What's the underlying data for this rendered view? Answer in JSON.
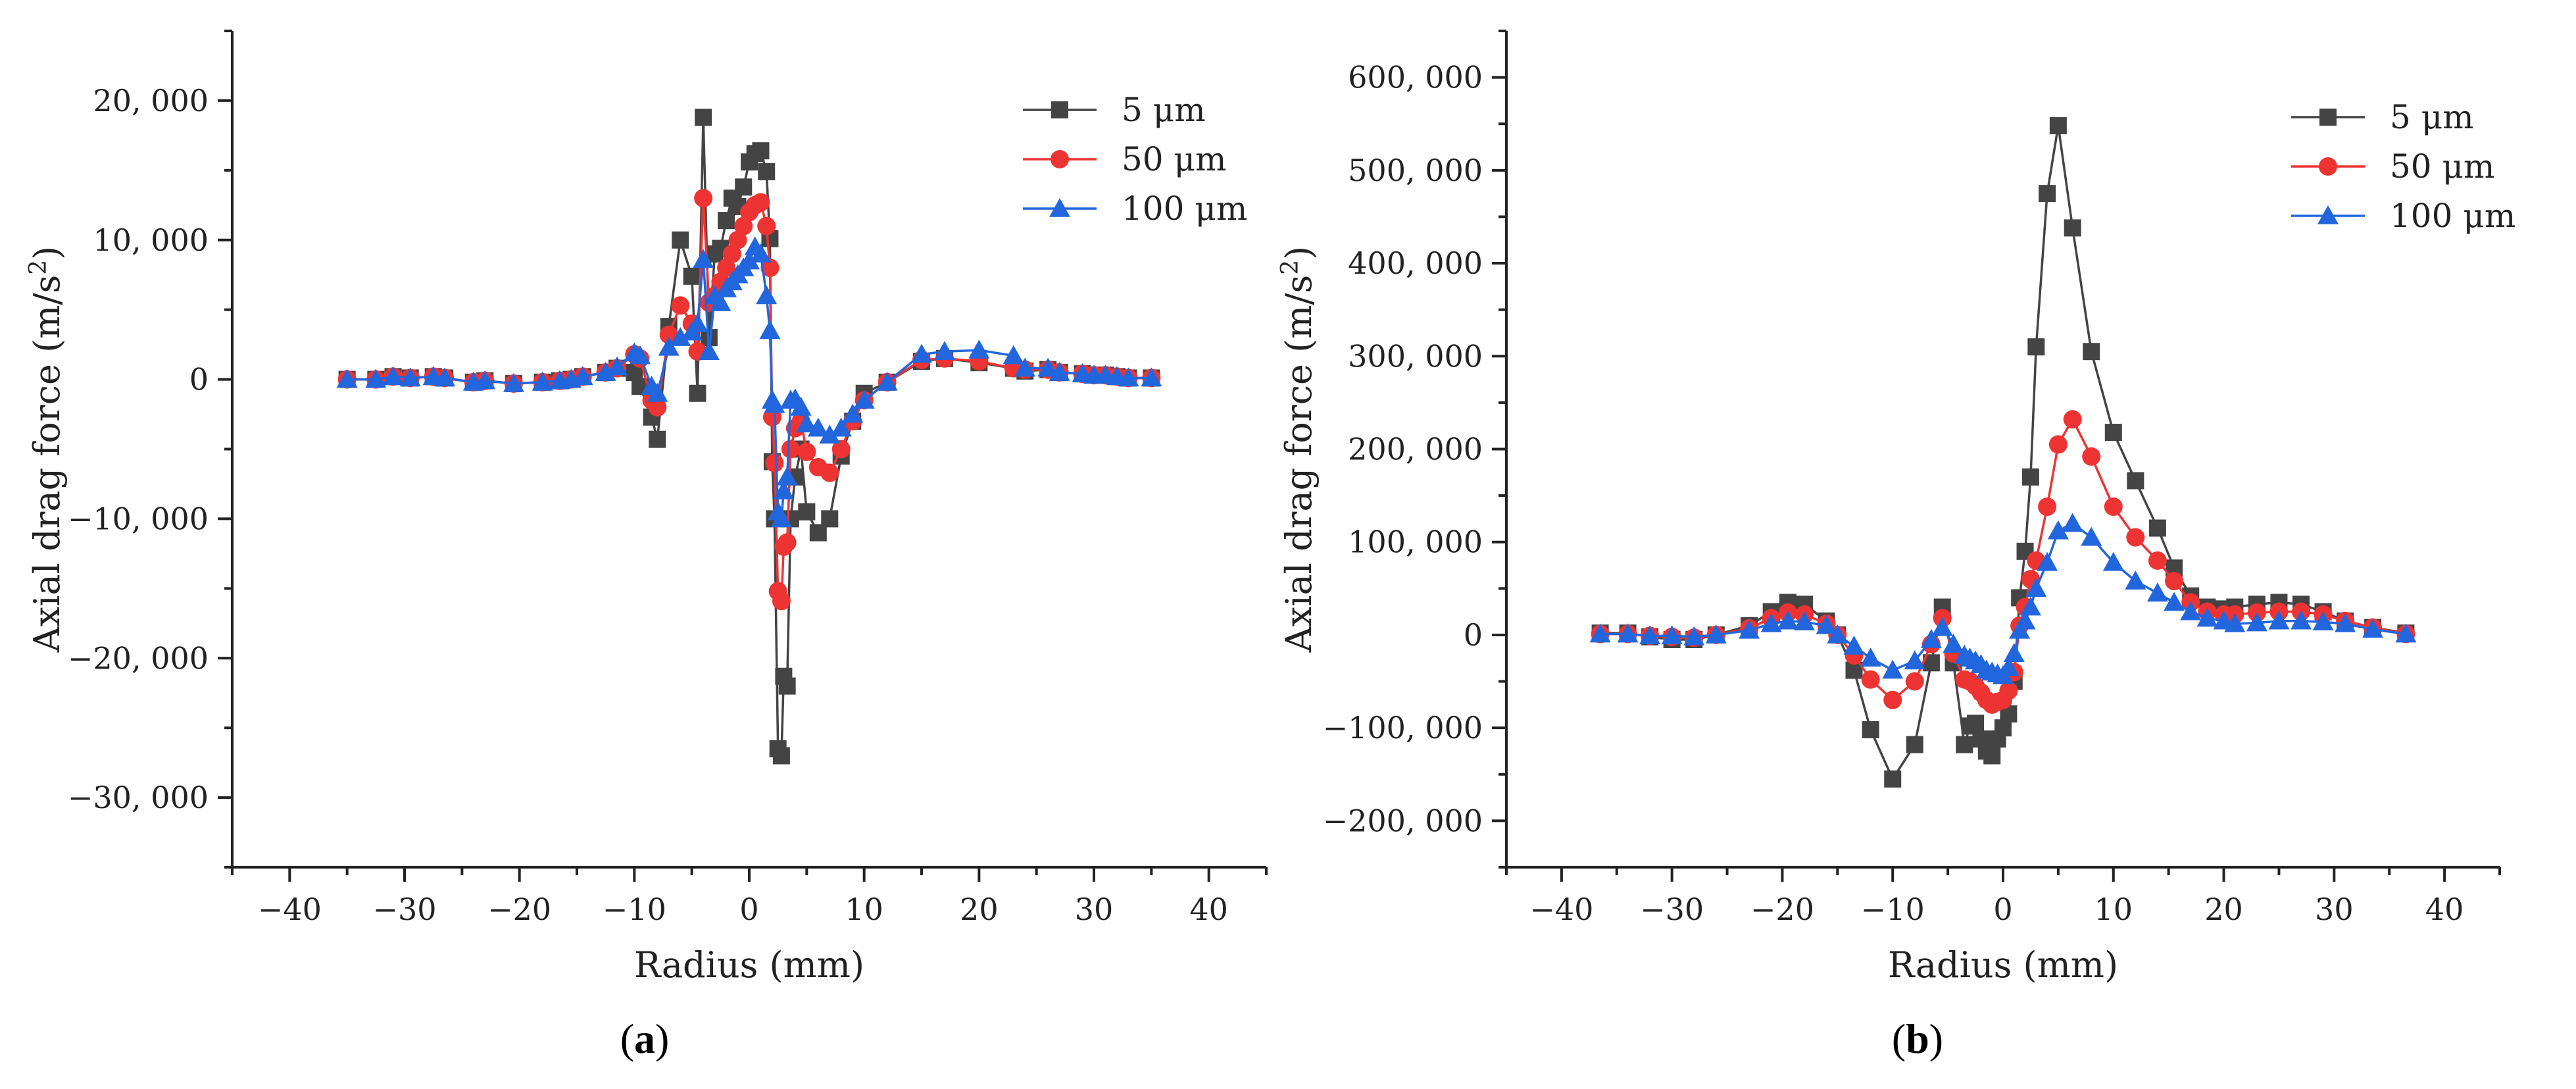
{
  "chart_data": [
    {
      "type": "line",
      "panel_label": "a",
      "xlabel": "Radius (mm)",
      "ylabel_main": "Axial drag force (m/s",
      "ylabel_sup": "2",
      "ylabel_end": ")",
      "xlim": [
        -45,
        45
      ],
      "ylim": [
        -35000,
        25000
      ],
      "xticks": [
        -40,
        -30,
        -20,
        -10,
        0,
        10,
        20,
        30,
        40
      ],
      "xtick_labels": [
        "−40",
        "−30",
        "−20",
        "−10",
        "0",
        "10",
        "20",
        "30",
        "40"
      ],
      "yticks": [
        -30000,
        -20000,
        -10000,
        0,
        10000,
        20000
      ],
      "ytick_labels": [
        "−30, 000",
        "−20, 000",
        "−10, 000",
        "0",
        "10, 000",
        "20, 000"
      ],
      "legend_position": "top-right",
      "series": [
        {
          "name": "5 μm",
          "color": "#444444",
          "marker": "square",
          "x": [
            -35,
            -32.5,
            -31,
            -29.5,
            -27.5,
            -26.5,
            -24,
            -23,
            -20.5,
            -18,
            -16.5,
            -15.5,
            -14.5,
            -12.5,
            -11.5,
            -10,
            -9.5,
            -8.5,
            -8,
            -7,
            -6,
            -5,
            -4.5,
            -4,
            -3.5,
            -3,
            -2.5,
            -2,
            -1.5,
            -1,
            -0.5,
            0,
            0.5,
            1,
            1.5,
            1.8,
            2,
            2.2,
            2.5,
            2.8,
            3,
            3.3,
            3.6,
            4,
            4.5,
            5,
            6,
            7,
            8,
            9,
            10,
            12,
            15,
            17,
            20,
            23,
            24,
            26,
            27,
            29,
            30,
            31,
            32,
            33,
            35
          ],
          "y": [
            0,
            0,
            200,
            100,
            200,
            100,
            -200,
            -100,
            -300,
            -200,
            -100,
            0,
            200,
            500,
            800,
            500,
            -500,
            -2700,
            -4300,
            3800,
            10000,
            7400,
            -1000,
            18800,
            3000,
            9000,
            9400,
            11400,
            13000,
            12400,
            13800,
            15600,
            16200,
            16400,
            14900,
            10100,
            -5900,
            -10000,
            -26500,
            -27000,
            -21300,
            -22000,
            -10000,
            -7000,
            -5000,
            -9500,
            -11000,
            -10000,
            -5500,
            -3000,
            -1000,
            -200,
            1300,
            1500,
            1200,
            800,
            600,
            700,
            500,
            400,
            300,
            300,
            200,
            100,
            100
          ]
        },
        {
          "name": "50 μm",
          "color": "#ee3333",
          "marker": "circle",
          "x": [
            -35,
            -32.5,
            -31,
            -29.5,
            -27.5,
            -26.5,
            -24,
            -23,
            -20.5,
            -18,
            -16.5,
            -15.5,
            -14.5,
            -12.5,
            -11.5,
            -10,
            -9.5,
            -8.5,
            -8,
            -7,
            -6,
            -5,
            -4.5,
            -4,
            -3.5,
            -3,
            -2.5,
            -2,
            -1.5,
            -1,
            -0.5,
            0,
            0.5,
            1,
            1.5,
            1.8,
            2,
            2.2,
            2.5,
            2.8,
            3,
            3.3,
            3.6,
            4,
            4.5,
            5,
            6,
            7,
            8,
            9,
            10,
            12,
            15,
            17,
            20,
            23,
            24,
            26,
            27,
            29,
            30,
            31,
            32,
            33,
            35
          ],
          "y": [
            0,
            0,
            200,
            100,
            200,
            100,
            -200,
            -100,
            -300,
            -200,
            -100,
            0,
            200,
            500,
            800,
            1800,
            1500,
            -1500,
            -2000,
            3200,
            5300,
            4000,
            2000,
            13000,
            5500,
            6000,
            7000,
            8000,
            9000,
            10000,
            11000,
            12000,
            12500,
            12700,
            11000,
            8000,
            -2700,
            -6000,
            -15200,
            -15900,
            -12000,
            -11700,
            -5000,
            -3500,
            -3000,
            -5200,
            -6300,
            -6700,
            -5000,
            -3000,
            -1500,
            -200,
            1400,
            1500,
            1300,
            800,
            700,
            700,
            500,
            400,
            300,
            300,
            200,
            100,
            100
          ]
        },
        {
          "name": "100 μm",
          "color": "#2266dd",
          "marker": "triangle",
          "x": [
            -35,
            -32.5,
            -31,
            -29.5,
            -27.5,
            -26.5,
            -24,
            -23,
            -20.5,
            -18,
            -16.5,
            -15.5,
            -14.5,
            -12.5,
            -11.5,
            -10,
            -9.5,
            -8.5,
            -8,
            -7,
            -6,
            -5,
            -4.5,
            -4,
            -3.5,
            -3,
            -2.5,
            -2,
            -1.5,
            -1,
            -0.5,
            0,
            0.5,
            1,
            1.5,
            1.8,
            2,
            2.2,
            2.5,
            2.8,
            3,
            3.3,
            3.6,
            4,
            4.5,
            5,
            6,
            7,
            8,
            9,
            10,
            12,
            15,
            17,
            20,
            23,
            24,
            26,
            27,
            29,
            30,
            31,
            32,
            33,
            35
          ],
          "y": [
            0,
            0,
            200,
            100,
            200,
            100,
            -200,
            -100,
            -300,
            -200,
            -100,
            0,
            200,
            500,
            900,
            1900,
            1700,
            -500,
            -1000,
            2300,
            3000,
            3400,
            4000,
            8600,
            2000,
            6000,
            5500,
            6500,
            7000,
            7500,
            8000,
            8500,
            9500,
            9000,
            6000,
            3500,
            -1500,
            -1800,
            -9500,
            -10000,
            -8000,
            -7000,
            -1500,
            -1400,
            -2000,
            -3200,
            -3500,
            -4000,
            -3500,
            -2500,
            -1500,
            -200,
            1800,
            2000,
            2100,
            1700,
            800,
            800,
            500,
            400,
            300,
            300,
            200,
            100,
            100
          ]
        }
      ]
    },
    {
      "type": "line",
      "panel_label": "b",
      "xlabel": "Radius (mm)",
      "ylabel_main": "Axial drag force (m/s",
      "ylabel_sup": "2",
      "ylabel_end": ")",
      "xlim": [
        -45,
        45
      ],
      "ylim": [
        -250000,
        650000
      ],
      "xticks": [
        -40,
        -30,
        -20,
        -10,
        0,
        10,
        20,
        30,
        40
      ],
      "xtick_labels": [
        "−40",
        "−30",
        "−20",
        "−10",
        "0",
        "10",
        "20",
        "30",
        "40"
      ],
      "yticks": [
        -200000,
        -100000,
        0,
        100000,
        200000,
        300000,
        400000,
        500000,
        600000
      ],
      "ytick_labels": [
        "−200, 000",
        "−100, 000",
        "0",
        "100, 000",
        "200, 000",
        "300, 000",
        "400, 000",
        "500, 000",
        "600, 000"
      ],
      "legend_position": "top-right",
      "series": [
        {
          "name": "5 μm",
          "color": "#444444",
          "marker": "square",
          "x": [
            -36.5,
            -34,
            -32,
            -30,
            -28,
            -26,
            -23,
            -21,
            -19.5,
            -18,
            -16,
            -15,
            -13.5,
            -12,
            -10,
            -8,
            -6.5,
            -5.5,
            -4.5,
            -3.5,
            -3,
            -2.5,
            -2,
            -1.5,
            -1,
            -0.5,
            0,
            0.5,
            1,
            1.5,
            2,
            2.5,
            3,
            4,
            5,
            6.3,
            8,
            10,
            12,
            14,
            15.5,
            17,
            18.5,
            20,
            21,
            23,
            25,
            27,
            29,
            31,
            33.5,
            36.5
          ],
          "y": [
            2000,
            2000,
            -2000,
            -5000,
            -5000,
            0,
            10000,
            25000,
            35000,
            33000,
            15000,
            0,
            -38000,
            -102000,
            -155000,
            -118000,
            -30000,
            30000,
            -30000,
            -118000,
            -98000,
            -95000,
            -112000,
            -125000,
            -130000,
            -112000,
            -100000,
            -85000,
            -50000,
            40000,
            90000,
            170000,
            310000,
            475000,
            548000,
            438000,
            305000,
            218000,
            166000,
            115000,
            72000,
            42000,
            30000,
            28000,
            30000,
            33000,
            35000,
            33000,
            25000,
            15000,
            8000,
            2000
          ]
        },
        {
          "name": "50 μm",
          "color": "#ee3333",
          "marker": "circle",
          "x": [
            -36.5,
            -34,
            -32,
            -30,
            -28,
            -26,
            -23,
            -21,
            -19.5,
            -18,
            -16,
            -15,
            -13.5,
            -12,
            -10,
            -8,
            -6.5,
            -5.5,
            -4.5,
            -3.5,
            -3,
            -2.5,
            -2,
            -1.5,
            -1,
            -0.5,
            0,
            0.5,
            1,
            1.5,
            2,
            2.5,
            3,
            4,
            5,
            6.3,
            8,
            10,
            12,
            14,
            15.5,
            17,
            18.5,
            20,
            21,
            23,
            25,
            27,
            29,
            31,
            33.5,
            36.5
          ],
          "y": [
            1000,
            1000,
            -1000,
            -2000,
            -3000,
            0,
            7000,
            18000,
            24000,
            22000,
            12000,
            0,
            -22000,
            -48000,
            -70000,
            -50000,
            -10000,
            18000,
            -20000,
            -48000,
            -50000,
            -55000,
            -62000,
            -70000,
            -75000,
            -72000,
            -70000,
            -60000,
            -40000,
            10000,
            30000,
            60000,
            80000,
            138000,
            205000,
            232000,
            192000,
            138000,
            105000,
            80000,
            58000,
            35000,
            25000,
            22000,
            22000,
            24000,
            25000,
            25000,
            22000,
            15000,
            8000,
            1000
          ]
        },
        {
          "name": "100 μm",
          "color": "#2266dd",
          "marker": "triangle",
          "x": [
            -36.5,
            -34,
            -32,
            -30,
            -28,
            -26,
            -23,
            -21,
            -19.5,
            -18,
            -16,
            -15,
            -13.5,
            -12,
            -10,
            -8,
            -6.5,
            -5.5,
            -4.5,
            -3.5,
            -3,
            -2.5,
            -2,
            -1.5,
            -1,
            -0.5,
            0,
            0.5,
            1,
            1.5,
            2,
            2.5,
            3,
            4,
            5,
            6.3,
            8,
            10,
            12,
            14,
            15.5,
            17,
            18.5,
            20,
            21,
            23,
            25,
            27,
            29,
            31,
            33.5,
            36.5
          ],
          "y": [
            1000,
            1000,
            -1000,
            -1000,
            -2000,
            0,
            5000,
            12000,
            15000,
            14000,
            10000,
            0,
            -12000,
            -25000,
            -38000,
            -28000,
            -5000,
            8000,
            -10000,
            -22000,
            -25000,
            -28000,
            -32000,
            -38000,
            -40000,
            -42000,
            -44000,
            -35000,
            -20000,
            5000,
            15000,
            30000,
            50000,
            78000,
            112000,
            120000,
            105000,
            78000,
            58000,
            45000,
            35000,
            25000,
            18000,
            15000,
            12000,
            13000,
            15000,
            15000,
            14000,
            12000,
            6000,
            1000
          ]
        }
      ]
    }
  ]
}
